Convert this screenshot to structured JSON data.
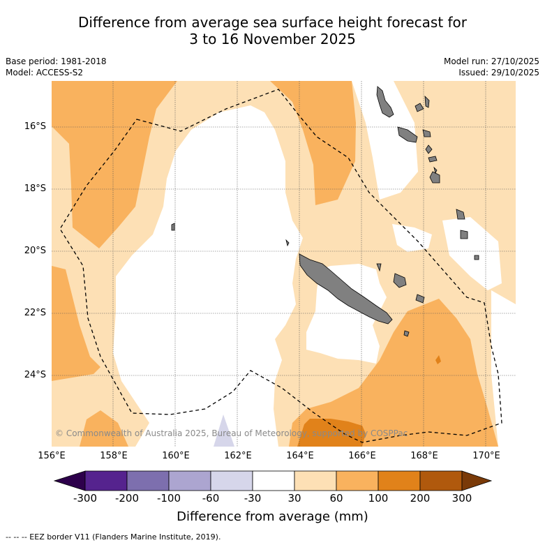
{
  "title": {
    "line1": "Difference from average sea surface height forecast for",
    "line2": "3 to 16 November 2025"
  },
  "meta": {
    "base_period": "Base period: 1981-2018",
    "model": "Model: ACCESS-S2",
    "model_run": "Model run: 27/10/2025",
    "issued": "Issued: 29/10/2025"
  },
  "map": {
    "lat_labels": [
      "16°S",
      "18°S",
      "20°S",
      "22°S",
      "24°S"
    ],
    "lon_labels": [
      "156°E",
      "158°E",
      "160°E",
      "162°E",
      "164°E",
      "166°E",
      "168°E",
      "170°E"
    ],
    "copyright": "© Commonwealth of Australia 2025, Bureau of Meteorology, supported by COSPPac",
    "land_color": "#808080",
    "colors": {
      "c30_60": "#fde0b5",
      "c60_100": "#f9b25e",
      "c100_200": "#e1821a",
      "c200_300": "#b0590d",
      "cn30_n60": "#d6d6ea",
      "cn60_n100": "#aca5d0",
      "cn100_n200": "#7d6fae",
      "cn200_n300": "#55238e"
    }
  },
  "legend": {
    "labels": [
      "-300",
      "-200",
      "-100",
      "-60",
      "-30",
      "30",
      "60",
      "100",
      "200",
      "300"
    ],
    "title": "Difference from average (mm)",
    "colors": [
      "#2d004b",
      "#55238e",
      "#7d6fae",
      "#aca5d0",
      "#d6d6ea",
      "#ffffff",
      "#fde0b5",
      "#f9b25e",
      "#e1821a",
      "#b0590d",
      "#7a3a08"
    ]
  },
  "eez_note": "--  --  -- EEZ border V11 (Flanders Marine Institute, 2019)."
}
